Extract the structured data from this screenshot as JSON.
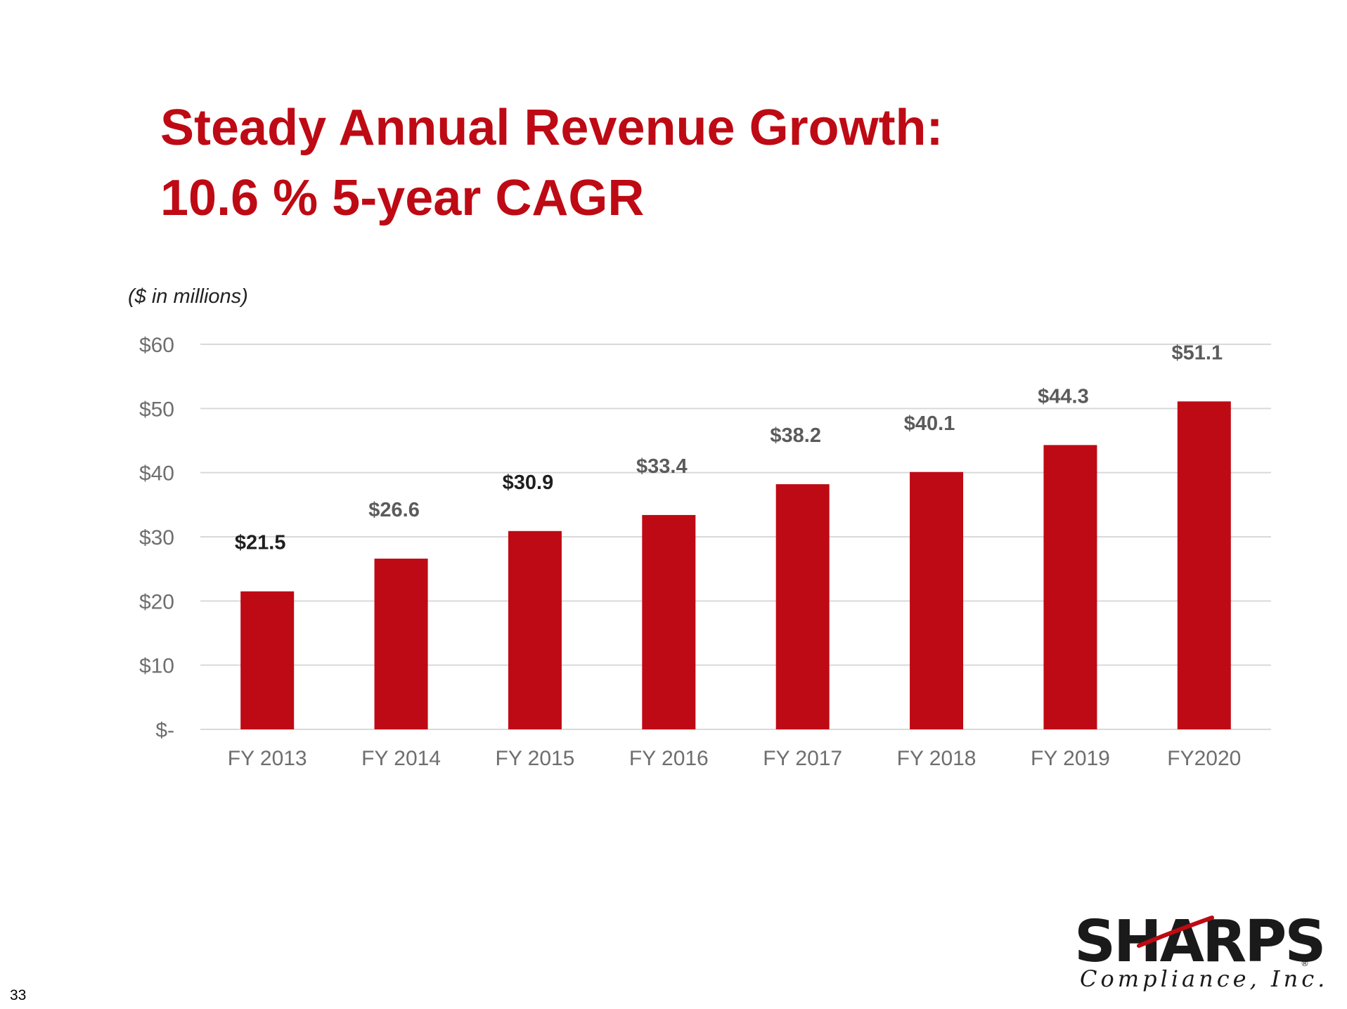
{
  "slide": {
    "title_line1": "Steady Annual Revenue Growth:",
    "title_line2": "10.6 % 5-year CAGR",
    "unit_note": "($ in millions)",
    "page_number": "33"
  },
  "logo": {
    "wordmark": "SHARPS",
    "tagline": "Compliance, Inc.",
    "registered_mark": "®"
  },
  "colors": {
    "brand_red": "#BE0A14",
    "gridline": "#D9D9D9",
    "tick_label": "#6E6E6E",
    "data_label_gray": "#5B5B5B",
    "data_label_dark": "#1F1F1F"
  },
  "chart_data": {
    "type": "bar",
    "categories": [
      "FY 2013",
      "FY 2014",
      "FY 2015",
      "FY 2016",
      "FY 2017",
      "FY 2018",
      "FY 2019",
      "FY2020"
    ],
    "values": [
      21.5,
      26.6,
      30.9,
      33.4,
      38.2,
      40.1,
      44.3,
      51.1
    ],
    "data_labels": [
      "$21.5",
      "$26.6",
      "$30.9",
      "$33.4",
      "$38.2",
      "$40.1",
      "$44.3",
      "$51.1"
    ],
    "title": "",
    "xlabel": "",
    "ylabel": "",
    "ylim": [
      0,
      60
    ],
    "yticks": [
      0,
      10,
      20,
      30,
      40,
      50,
      60
    ],
    "ytick_labels": [
      "$-",
      "$10",
      "$20",
      "$30",
      "$40",
      "$50",
      "$60"
    ],
    "grid": true,
    "legend": false,
    "bar_color": "#BE0A14"
  }
}
